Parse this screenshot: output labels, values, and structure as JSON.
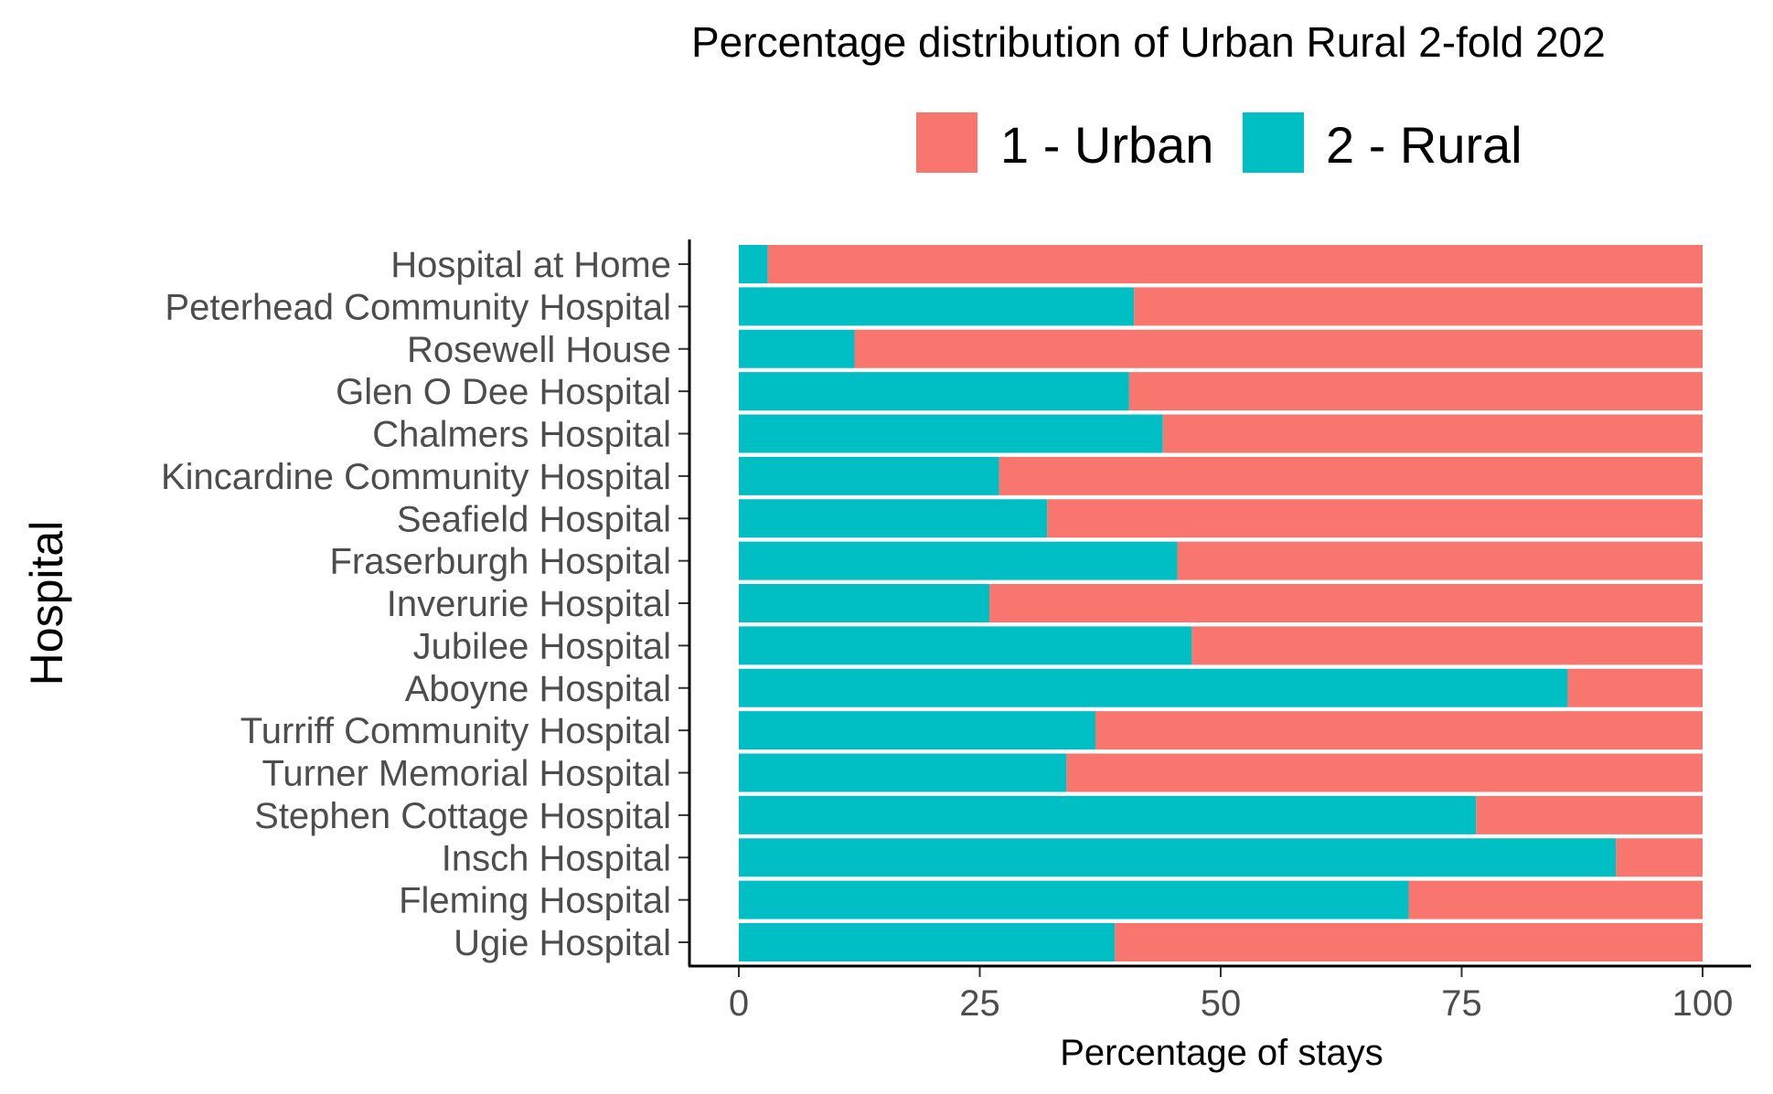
{
  "chart_data": {
    "type": "bar",
    "orientation": "horizontal",
    "stacked": true,
    "title": "Percentage distribution of Urban Rural 2-fold 202",
    "xlabel": "Percentage of stays",
    "ylabel": "Hospital",
    "xlim": [
      0,
      100
    ],
    "xticks": [
      "0",
      "25",
      "50",
      "75",
      "100"
    ],
    "grid": false,
    "legend_position": "top",
    "categories": [
      "Hospital at Home",
      "Peterhead Community Hospital",
      "Rosewell House",
      "Glen O Dee Hospital",
      "Chalmers Hospital",
      "Kincardine Community Hospital",
      "Seafield Hospital",
      "Fraserburgh Hospital",
      "Inverurie Hospital",
      "Jubilee Hospital",
      "Aboyne Hospital",
      "Turriff Community Hospital",
      "Turner Memorial Hospital",
      "Stephen Cottage Hospital",
      "Insch Hospital",
      "Fleming Hospital",
      "Ugie Hospital"
    ],
    "series": [
      {
        "name": "2 - Rural",
        "color": "#00BFC4",
        "values": [
          3,
          41,
          12,
          40.5,
          44,
          27,
          32,
          45.5,
          26,
          47,
          86,
          37,
          34,
          76.5,
          91,
          69.5,
          39
        ]
      },
      {
        "name": "1 - Urban",
        "color": "#F8766D",
        "values": [
          97,
          59,
          88,
          59.5,
          56,
          73,
          68,
          54.5,
          74,
          53,
          14,
          63,
          66,
          23.5,
          9,
          30.5,
          61
        ]
      }
    ],
    "legend": [
      {
        "label": "1 - Urban",
        "color": "#F8766D"
      },
      {
        "label": "2 - Rural",
        "color": "#00BFC4"
      }
    ]
  }
}
